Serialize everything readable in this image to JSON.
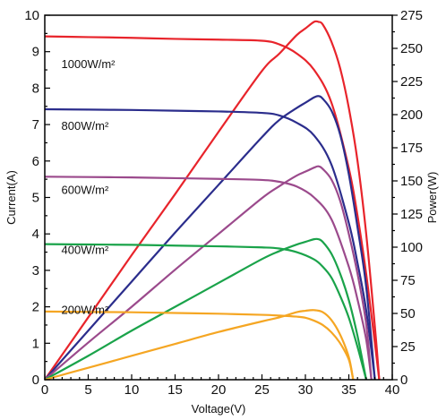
{
  "chart_data": {
    "type": "line",
    "xlabel": "Voltage(V)",
    "ylabel_left": "Current(A)",
    "ylabel_right": "Power(W)",
    "xlim": [
      0,
      40
    ],
    "ylim_left": [
      0,
      10
    ],
    "ylim_right": [
      0,
      275
    ],
    "x_ticks": [
      0,
      5,
      10,
      15,
      20,
      25,
      30,
      35,
      40
    ],
    "y_ticks_left": [
      0,
      1,
      2,
      3,
      4,
      5,
      6,
      7,
      8,
      9,
      10
    ],
    "y_ticks_right": [
      0,
      25,
      50,
      75,
      100,
      125,
      150,
      175,
      200,
      225,
      250,
      275
    ],
    "grid": false,
    "series": [
      {
        "name": "1000W/m²",
        "color": "#e8242b",
        "iv": {
          "x": [
            0,
            5,
            10,
            15,
            20,
            25,
            27,
            29,
            31,
            33,
            35,
            36,
            37,
            38,
            38.5
          ],
          "y": [
            9.42,
            9.4,
            9.38,
            9.35,
            9.33,
            9.3,
            9.2,
            8.95,
            8.5,
            7.6,
            5.8,
            4.5,
            2.9,
            1.0,
            0
          ]
        },
        "pv": {
          "x": [
            0,
            5,
            10,
            15,
            20,
            25,
            27,
            29,
            30,
            31,
            31.5,
            32,
            33,
            34,
            35,
            36,
            37,
            38,
            38.5
          ],
          "y": [
            0,
            47,
            94,
            140,
            187,
            233,
            246,
            260,
            265,
            270,
            270,
            268,
            255,
            235,
            205,
            165,
            110,
            40,
            0
          ]
        }
      },
      {
        "name": "800W/m²",
        "color": "#2b2d8c",
        "iv": {
          "x": [
            0,
            5,
            10,
            15,
            20,
            25,
            27,
            29,
            31,
            33,
            35,
            36,
            37,
            38
          ],
          "y": [
            7.42,
            7.41,
            7.4,
            7.38,
            7.36,
            7.32,
            7.25,
            7.05,
            6.7,
            5.9,
            4.3,
            3.2,
            1.9,
            0
          ]
        },
        "pv": {
          "x": [
            0,
            5,
            10,
            15,
            20,
            25,
            27,
            29,
            30,
            31,
            31.5,
            32,
            33,
            34,
            35,
            36,
            37,
            38
          ],
          "y": [
            0,
            37,
            74,
            111,
            147,
            183,
            196,
            205,
            209,
            213,
            214,
            212,
            203,
            185,
            155,
            115,
            70,
            0
          ]
        }
      },
      {
        "name": "600W/m²",
        "color": "#9b4a8c",
        "iv": {
          "x": [
            0,
            5,
            10,
            15,
            20,
            25,
            27,
            29,
            31,
            33,
            35,
            36,
            37,
            37.6
          ],
          "y": [
            5.57,
            5.56,
            5.55,
            5.53,
            5.51,
            5.48,
            5.43,
            5.3,
            5.0,
            4.4,
            3.1,
            2.2,
            1.1,
            0
          ]
        },
        "pv": {
          "x": [
            0,
            5,
            10,
            15,
            20,
            25,
            27,
            29,
            30,
            31,
            31.5,
            32,
            33,
            34,
            35,
            36,
            37,
            37.6
          ],
          "y": [
            0,
            28,
            55,
            83,
            110,
            137,
            146,
            154,
            157,
            160,
            161,
            159,
            151,
            135,
            110,
            80,
            42,
            0
          ]
        }
      },
      {
        "name": "400W/m²",
        "color": "#1aa34a",
        "iv": {
          "x": [
            0,
            5,
            10,
            15,
            20,
            25,
            27,
            29,
            31,
            32,
            33,
            34,
            35,
            36,
            37
          ],
          "y": [
            3.72,
            3.71,
            3.7,
            3.68,
            3.66,
            3.63,
            3.6,
            3.5,
            3.3,
            3.1,
            2.8,
            2.3,
            1.7,
            0.9,
            0
          ]
        },
        "pv": {
          "x": [
            0,
            5,
            10,
            15,
            20,
            25,
            27,
            29,
            30,
            31,
            31.5,
            32,
            33,
            34,
            35,
            36,
            37
          ],
          "y": [
            0,
            18,
            37,
            55,
            73,
            91,
            97,
            102,
            104,
            106,
            106,
            104,
            95,
            80,
            60,
            33,
            0
          ]
        }
      },
      {
        "name": "200W/m²",
        "color": "#f5a623",
        "iv": {
          "x": [
            0,
            5,
            10,
            15,
            20,
            25,
            27,
            29,
            30,
            31,
            32,
            33,
            34,
            35,
            35.5
          ],
          "y": [
            1.87,
            1.86,
            1.85,
            1.83,
            1.81,
            1.78,
            1.76,
            1.73,
            1.7,
            1.62,
            1.5,
            1.3,
            1.0,
            0.55,
            0
          ]
        },
        "pv": {
          "x": [
            0,
            5,
            10,
            15,
            20,
            25,
            27,
            29,
            30,
            31,
            32,
            33,
            34,
            35,
            35.5
          ],
          "y": [
            0,
            9,
            18,
            27,
            36,
            44,
            47,
            51,
            52,
            52.5,
            51,
            45,
            34,
            17,
            0
          ]
        }
      }
    ],
    "annotations": [
      {
        "text": "1000W/m²",
        "x": 1.5,
        "y": 8.65
      },
      {
        "text": "800W/m²",
        "x": 1.5,
        "y": 6.95
      },
      {
        "text": "600W/m²",
        "x": 1.5,
        "y": 5.2
      },
      {
        "text": "400W/m²",
        "x": 1.5,
        "y": 3.55
      },
      {
        "text": "200W/m²",
        "x": 1.5,
        "y": 1.9
      }
    ]
  }
}
